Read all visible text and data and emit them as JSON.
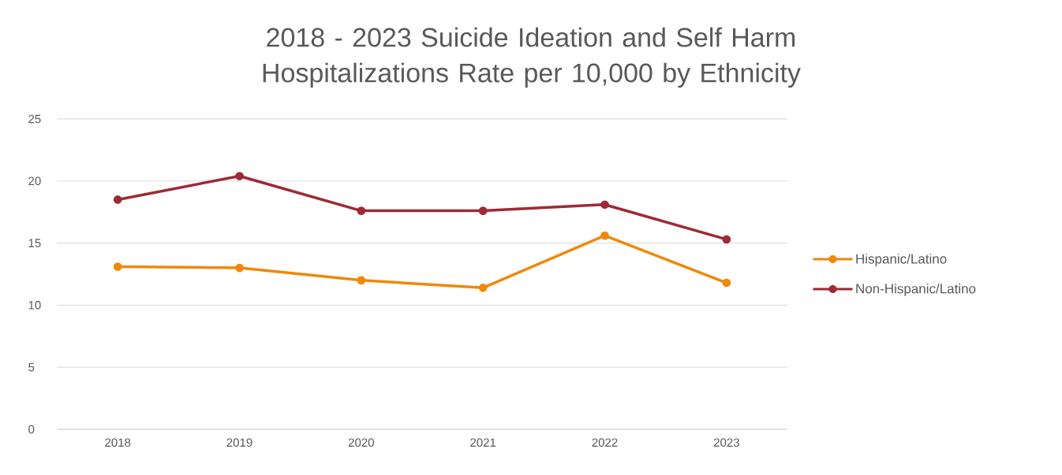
{
  "chart_data": {
    "type": "line",
    "title": "2018 - 2023 Suicide Ideation and Self Harm Hospitalizations Rate per 10,000 by Ethnicity",
    "categories": [
      "2018",
      "2019",
      "2020",
      "2021",
      "2022",
      "2023"
    ],
    "series": [
      {
        "name": "Hispanic/Latino",
        "color": "#f0880a",
        "values": [
          13.1,
          13.0,
          12.0,
          11.4,
          15.6,
          11.8
        ]
      },
      {
        "name": "Non-Hispanic/Latino",
        "color": "#9e2a35",
        "values": [
          18.5,
          20.4,
          17.6,
          17.6,
          18.1,
          15.3
        ]
      }
    ],
    "ylim": [
      0,
      25
    ],
    "yticks": [
      0,
      5,
      10,
      15,
      20,
      25
    ],
    "grid": "y",
    "legend": "right",
    "marker": "circle",
    "line_style": "solid"
  }
}
